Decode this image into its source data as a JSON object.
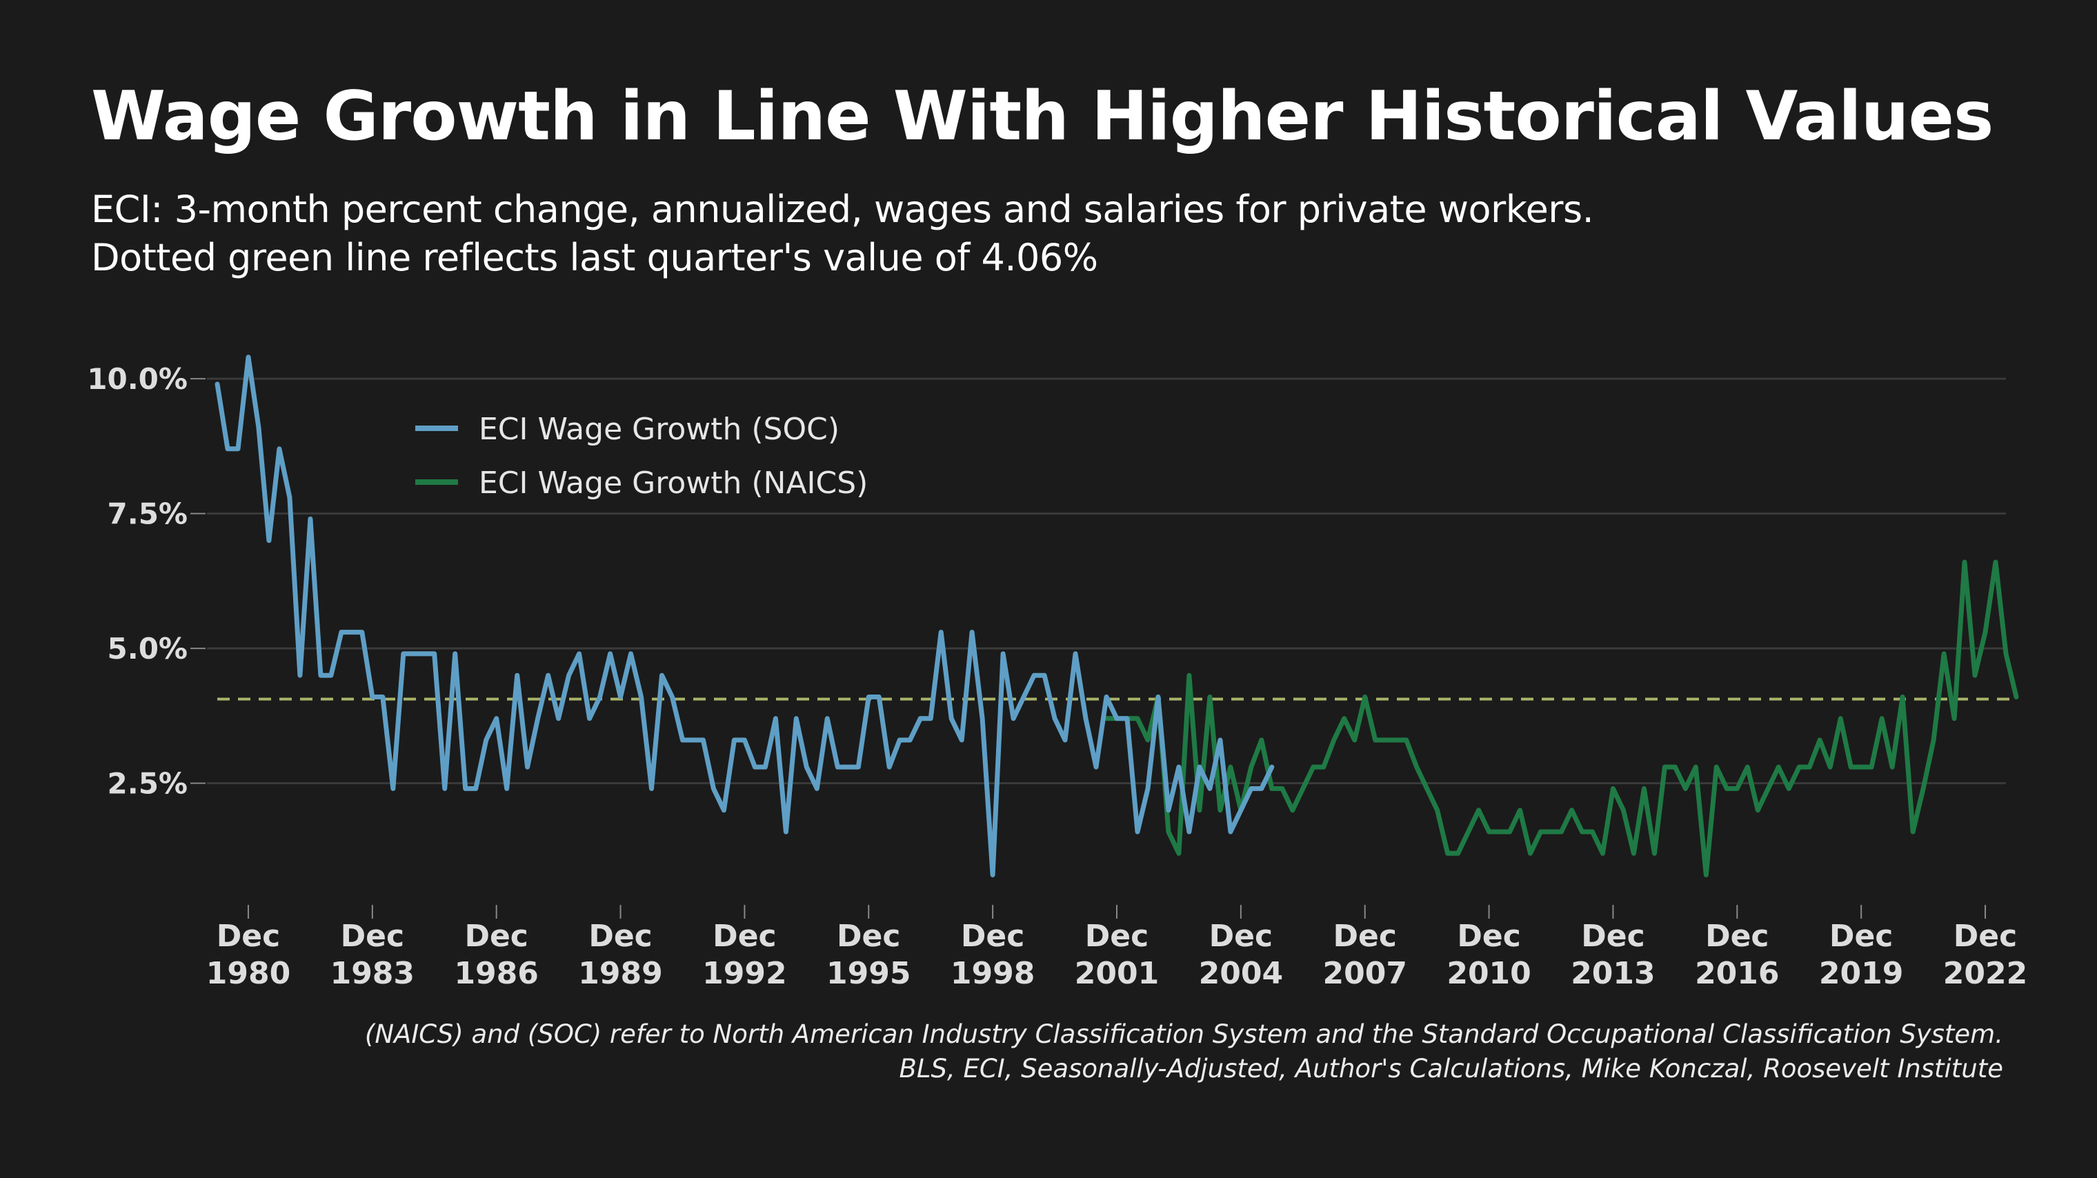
{
  "title": "Wage Growth in Line With Higher Historical Values",
  "subtitle_lines": [
    "ECI: 3-month percent change, annualized, wages and salaries for private workers.",
    "Dotted green line reflects last quarter's value of 4.06%"
  ],
  "footnotes": [
    "(NAICS) and (SOC) refer to North American Industry Classification System and the Standard Occupational Classification System.",
    "BLS, ECI, Seasonally-Adjusted, Author's Calculations, Mike Konczal, Roosevelt Institute"
  ],
  "colors": {
    "background": "#1b1b1b",
    "grid": "#3a3a3a",
    "soc": "#5f9fc6",
    "naics": "#1f7a45",
    "reference": "#a9b46a",
    "tick_text": "#dddddd"
  },
  "chart_data": {
    "type": "line",
    "title": "Wage Growth in Line With Higher Historical Values",
    "xlabel": "",
    "ylabel": "",
    "x_unit": "year (decimal, quarterly observations)",
    "xlim": [
      1979.75,
      2023.25
    ],
    "ylim": [
      0.5,
      10.5
    ],
    "grid": true,
    "legend_position": "top-left",
    "y_ticks": [
      {
        "value": 2.5,
        "label": "2.5%"
      },
      {
        "value": 5.0,
        "label": "5.0%"
      },
      {
        "value": 7.5,
        "label": "7.5%"
      },
      {
        "value": 10.0,
        "label": "10.0%"
      }
    ],
    "x_ticks": [
      {
        "value": 1980.75,
        "line1": "Dec",
        "line2": "1980"
      },
      {
        "value": 1983.75,
        "line1": "Dec",
        "line2": "1983"
      },
      {
        "value": 1986.75,
        "line1": "Dec",
        "line2": "1986"
      },
      {
        "value": 1989.75,
        "line1": "Dec",
        "line2": "1989"
      },
      {
        "value": 1992.75,
        "line1": "Dec",
        "line2": "1992"
      },
      {
        "value": 1995.75,
        "line1": "Dec",
        "line2": "1995"
      },
      {
        "value": 1998.75,
        "line1": "Dec",
        "line2": "1998"
      },
      {
        "value": 2001.75,
        "line1": "Dec",
        "line2": "2001"
      },
      {
        "value": 2004.75,
        "line1": "Dec",
        "line2": "2004"
      },
      {
        "value": 2007.75,
        "line1": "Dec",
        "line2": "2007"
      },
      {
        "value": 2010.75,
        "line1": "Dec",
        "line2": "2010"
      },
      {
        "value": 2013.75,
        "line1": "Dec",
        "line2": "2013"
      },
      {
        "value": 2016.75,
        "line1": "Dec",
        "line2": "2016"
      },
      {
        "value": 2019.75,
        "line1": "Dec",
        "line2": "2019"
      },
      {
        "value": 2022.75,
        "line1": "Dec",
        "line2": "2022"
      }
    ],
    "reference_line": {
      "value": 4.06
    },
    "series": [
      {
        "name": "ECI Wage Growth (SOC)",
        "color": "#5f9fc6",
        "x_start": 1980.0,
        "x_step": 0.25,
        "values": [
          9.9,
          8.7,
          8.7,
          10.4,
          9.1,
          7.0,
          8.7,
          7.8,
          4.5,
          7.4,
          4.5,
          4.5,
          5.3,
          5.3,
          5.3,
          4.1,
          4.1,
          2.4,
          4.9,
          4.9,
          4.9,
          4.9,
          2.4,
          4.9,
          2.4,
          2.4,
          3.3,
          3.7,
          2.4,
          4.5,
          2.8,
          3.7,
          4.5,
          3.7,
          4.5,
          4.9,
          3.7,
          4.1,
          4.9,
          4.1,
          4.9,
          4.1,
          2.4,
          4.5,
          4.1,
          3.3,
          3.3,
          3.3,
          2.4,
          2.0,
          3.3,
          3.3,
          2.8,
          2.8,
          3.7,
          1.6,
          3.7,
          2.8,
          2.4,
          3.7,
          2.8,
          2.8,
          2.8,
          4.1,
          4.1,
          2.8,
          3.3,
          3.3,
          3.7,
          3.7,
          5.3,
          3.7,
          3.3,
          5.3,
          3.7,
          0.8,
          4.9,
          3.7,
          4.1,
          4.5,
          4.5,
          3.7,
          3.3,
          4.9,
          3.7,
          2.8,
          4.1,
          3.7,
          3.7,
          1.6,
          2.4,
          4.1,
          2.0,
          2.8,
          1.6,
          2.8,
          2.4,
          3.3,
          1.6,
          2.0,
          2.4,
          2.4,
          2.8
        ]
      },
      {
        "name": "ECI Wage Growth (NAICS)",
        "color": "#1f7a45",
        "x_start": 2001.5,
        "x_step": 0.25,
        "values": [
          3.7,
          3.7,
          3.7,
          3.7,
          3.3,
          4.1,
          1.6,
          1.2,
          4.5,
          2.0,
          4.1,
          2.0,
          2.8,
          2.0,
          2.8,
          3.3,
          2.4,
          2.4,
          2.0,
          2.4,
          2.8,
          2.8,
          3.3,
          3.7,
          3.3,
          4.1,
          3.3,
          3.3,
          3.3,
          3.3,
          2.8,
          2.4,
          2.0,
          1.2,
          1.2,
          1.6,
          2.0,
          1.6,
          1.6,
          1.6,
          2.0,
          1.2,
          1.6,
          1.6,
          1.6,
          2.0,
          1.6,
          1.6,
          1.2,
          2.4,
          2.0,
          1.2,
          2.4,
          1.2,
          2.8,
          2.8,
          2.4,
          2.8,
          0.8,
          2.8,
          2.4,
          2.4,
          2.8,
          2.0,
          2.4,
          2.8,
          2.4,
          2.8,
          2.8,
          3.3,
          2.8,
          3.7,
          2.8,
          2.8,
          2.8,
          3.7,
          2.8,
          4.1,
          1.6,
          2.4,
          3.3,
          4.9,
          3.7,
          6.6,
          4.5,
          5.3,
          6.6,
          4.9,
          4.1
        ]
      }
    ]
  }
}
